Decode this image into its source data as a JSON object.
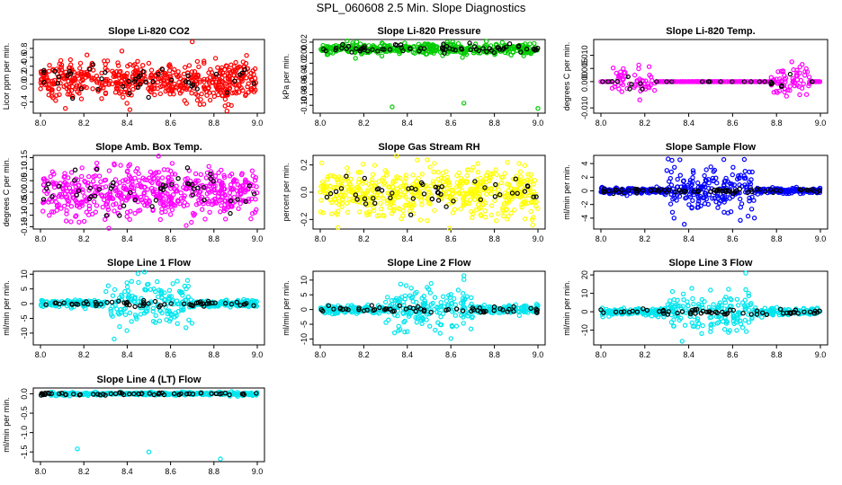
{
  "page": {
    "title": "SPL_060608  2.5 Min. Slope Diagnostics"
  },
  "style": {
    "colors": {
      "red": "#ff0000",
      "green": "#00cc00",
      "magenta": "#ff00ff",
      "yellow": "#ffff00",
      "blue": "#0000ff",
      "cyan": "#00e5ee",
      "black": "#000000"
    }
  },
  "chart_data": [
    {
      "type": "scatter",
      "title": "Slope Li-820 CO2",
      "ylabel": "Licor ppm per min.",
      "xlim": [
        8.0,
        9.0
      ],
      "x_ticks": [
        "8.0",
        "8.2",
        "8.4",
        "8.6",
        "8.8",
        "9.0"
      ],
      "ylim": [
        -0.65,
        1.0
      ],
      "y_ticks": [
        {
          "v": -0.4,
          "label": "-0.4"
        },
        {
          "v": 0.0,
          "label": "0.0"
        },
        {
          "v": 0.2,
          "label": "0.2"
        },
        {
          "v": 0.4,
          "label": "0.4"
        },
        {
          "v": 0.6,
          "label": "0.6"
        },
        {
          "v": 0.8,
          "label": "0.8"
        }
      ],
      "main_color": "#ff0000",
      "pattern": "band",
      "center": 0.08,
      "spread": 0.22,
      "n_main": 560,
      "n_black": 45,
      "outliers": [
        {
          "x": 8.7,
          "y": 0.95
        },
        {
          "x": 8.86,
          "y": -0.6
        }
      ]
    },
    {
      "type": "scatter",
      "title": "Slope Li-820 Pressure",
      "ylabel": "kPa per min.",
      "xlim": [
        8.0,
        9.0
      ],
      "x_ticks": [
        "8.0",
        "8.2",
        "8.4",
        "8.6",
        "8.8",
        "9.0"
      ],
      "ylim": [
        -0.115,
        0.025
      ],
      "y_ticks": [
        {
          "v": -0.1,
          "label": "-0.10"
        },
        {
          "v": -0.08,
          "label": "-0.08"
        },
        {
          "v": -0.06,
          "label": "-0.06"
        },
        {
          "v": -0.04,
          "label": "-0.04"
        },
        {
          "v": -0.02,
          "label": "-0.02"
        },
        {
          "v": 0.0,
          "label": "0.00"
        },
        {
          "v": 0.02,
          "label": "0.02"
        }
      ],
      "main_color": "#00cc00",
      "pattern": "band",
      "center": 0.007,
      "spread": 0.005,
      "n_main": 420,
      "n_black": 70,
      "outliers": [
        {
          "x": 8.33,
          "y": -0.103
        },
        {
          "x": 8.66,
          "y": -0.096
        },
        {
          "x": 9.0,
          "y": -0.106
        }
      ]
    },
    {
      "type": "scatter",
      "title": "Slope Li-820 Temp.",
      "ylabel": "degrees C per min.",
      "xlim": [
        8.0,
        9.0
      ],
      "x_ticks": [
        "8.0",
        "8.2",
        "8.4",
        "8.6",
        "8.8",
        "9.0"
      ],
      "ylim": [
        -0.012,
        0.016
      ],
      "y_ticks": [
        {
          "v": -0.01,
          "label": "-0.010"
        },
        {
          "v": 0.0,
          "label": "0.000"
        },
        {
          "v": 0.005,
          "label": "0.005"
        },
        {
          "v": 0.01,
          "label": "0.010"
        }
      ],
      "main_color": "#ff00ff",
      "pattern": "temp",
      "center": 0.0,
      "spread": 0.003,
      "n_main": 330,
      "n_black": 30,
      "outliers": []
    },
    {
      "type": "scatter",
      "title": "Slope Amb. Box Temp.",
      "ylabel": "degrees C per min.",
      "xlim": [
        8.0,
        9.0
      ],
      "x_ticks": [
        "8.0",
        "8.2",
        "8.4",
        "8.6",
        "8.8",
        "9.0"
      ],
      "ylim": [
        -0.16,
        0.16
      ],
      "y_ticks": [
        {
          "v": -0.15,
          "label": "-0.15"
        },
        {
          "v": -0.1,
          "label": "-0.10"
        },
        {
          "v": -0.05,
          "label": "-0.05"
        },
        {
          "v": 0.0,
          "label": "0.00"
        },
        {
          "v": 0.05,
          "label": "0.05"
        },
        {
          "v": 0.1,
          "label": "0.10"
        },
        {
          "v": 0.15,
          "label": "0.15"
        }
      ],
      "main_color": "#ff00ff",
      "pattern": "band",
      "center": 0.0,
      "spread": 0.055,
      "n_main": 560,
      "n_black": 50,
      "outliers": []
    },
    {
      "type": "scatter",
      "title": "Slope Gas Stream RH",
      "ylabel": "percent per min.",
      "xlim": [
        8.0,
        9.0
      ],
      "x_ticks": [
        "8.0",
        "8.2",
        "8.4",
        "8.6",
        "8.8",
        "9.0"
      ],
      "ylim": [
        -0.27,
        0.27
      ],
      "y_ticks": [
        {
          "v": -0.2,
          "label": "-0.2"
        },
        {
          "v": 0.0,
          "label": "0.0"
        },
        {
          "v": 0.2,
          "label": "0.2"
        }
      ],
      "main_color": "#ffff00",
      "pattern": "band",
      "center": 0.0,
      "spread": 0.09,
      "n_main": 560,
      "n_black": 50,
      "outliers": []
    },
    {
      "type": "scatter",
      "title": "Slope Sample Flow",
      "ylabel": "ml/min per min.",
      "xlim": [
        8.0,
        9.0
      ],
      "x_ticks": [
        "8.0",
        "8.2",
        "8.4",
        "8.6",
        "8.8",
        "9.0"
      ],
      "ylim": [
        -5.6,
        5.2
      ],
      "y_ticks": [
        {
          "v": -4,
          "label": "-4"
        },
        {
          "v": -2,
          "label": "-2"
        },
        {
          "v": 0,
          "label": "0"
        },
        {
          "v": 2,
          "label": "2"
        },
        {
          "v": 4,
          "label": "4"
        }
      ],
      "main_color": "#0000ff",
      "pattern": "burst",
      "center": 0.0,
      "spread": 0.2,
      "burst_spread": 1.6,
      "n_main": 520,
      "n_black": 70,
      "outliers": [
        {
          "x": 8.56,
          "y": 4.6
        },
        {
          "x": 8.38,
          "y": -4.9
        }
      ]
    },
    {
      "type": "scatter",
      "title": "Slope Line 1 Flow",
      "ylabel": "ml/min per min.",
      "xlim": [
        8.0,
        9.0
      ],
      "x_ticks": [
        "8.0",
        "8.2",
        "8.4",
        "8.6",
        "8.8",
        "9.0"
      ],
      "ylim": [
        -14,
        11
      ],
      "y_ticks": [
        {
          "v": -10,
          "label": "-10"
        },
        {
          "v": -5,
          "label": "-5"
        },
        {
          "v": 0,
          "label": "0"
        },
        {
          "v": 5,
          "label": "5"
        },
        {
          "v": 10,
          "label": "10"
        }
      ],
      "main_color": "#00e5ee",
      "pattern": "burst",
      "center": 0.0,
      "spread": 0.6,
      "burst_spread": 3.5,
      "n_main": 420,
      "n_black": 60,
      "outliers": [
        {
          "x": 8.45,
          "y": 10.2
        },
        {
          "x": 8.34,
          "y": -12.0
        }
      ]
    },
    {
      "type": "scatter",
      "title": "Slope Line 2 Flow",
      "ylabel": "ml/min per min.",
      "xlim": [
        8.0,
        9.0
      ],
      "x_ticks": [
        "8.0",
        "8.2",
        "8.4",
        "8.6",
        "8.8",
        "9.0"
      ],
      "ylim": [
        -12,
        13
      ],
      "y_ticks": [
        {
          "v": -10,
          "label": "-10"
        },
        {
          "v": -5,
          "label": "-5"
        },
        {
          "v": 0,
          "label": "0"
        },
        {
          "v": 5,
          "label": "5"
        },
        {
          "v": 10,
          "label": "10"
        }
      ],
      "main_color": "#00e5ee",
      "pattern": "burst",
      "center": 0.0,
      "spread": 0.7,
      "burst_spread": 3.5,
      "n_main": 420,
      "n_black": 60,
      "outliers": [
        {
          "x": 8.66,
          "y": 11.5
        },
        {
          "x": 8.66,
          "y": 10.2
        },
        {
          "x": 8.4,
          "y": -7.5
        }
      ]
    },
    {
      "type": "scatter",
      "title": "Slope Line 3 Flow",
      "ylabel": "ml/min per min.",
      "xlim": [
        8.0,
        9.0
      ],
      "x_ticks": [
        "8.0",
        "8.2",
        "8.4",
        "8.6",
        "8.8",
        "9.0"
      ],
      "ylim": [
        -18,
        22
      ],
      "y_ticks": [
        {
          "v": -10,
          "label": "-10"
        },
        {
          "v": 0,
          "label": "0"
        },
        {
          "v": 10,
          "label": "10"
        },
        {
          "v": 20,
          "label": "20"
        }
      ],
      "main_color": "#00e5ee",
      "pattern": "burst",
      "center": 0.0,
      "spread": 1.0,
      "burst_spread": 5.0,
      "n_main": 420,
      "n_black": 60,
      "outliers": [
        {
          "x": 8.66,
          "y": 21
        },
        {
          "x": 8.66,
          "y": 12
        },
        {
          "x": 8.37,
          "y": -16
        }
      ]
    },
    {
      "type": "scatter",
      "title": "Slope Line 4 (LT) Flow",
      "ylabel": "ml/min per min.",
      "xlim": [
        8.0,
        9.0
      ],
      "x_ticks": [
        "8.0",
        "8.2",
        "8.4",
        "8.6",
        "8.8",
        "9.0"
      ],
      "ylim": [
        -1.75,
        0.15
      ],
      "y_ticks": [
        {
          "v": -1.5,
          "label": "-1.5"
        },
        {
          "v": -1.0,
          "label": "-1.0"
        },
        {
          "v": -0.5,
          "label": "-0.5"
        },
        {
          "v": 0.0,
          "label": "0.0"
        }
      ],
      "main_color": "#00e5ee",
      "pattern": "band",
      "center": 0.0,
      "spread": 0.02,
      "n_main": 330,
      "n_black": 60,
      "outliers": [
        {
          "x": 8.17,
          "y": -1.42
        },
        {
          "x": 8.5,
          "y": -1.5
        },
        {
          "x": 8.83,
          "y": -1.68
        }
      ]
    }
  ]
}
